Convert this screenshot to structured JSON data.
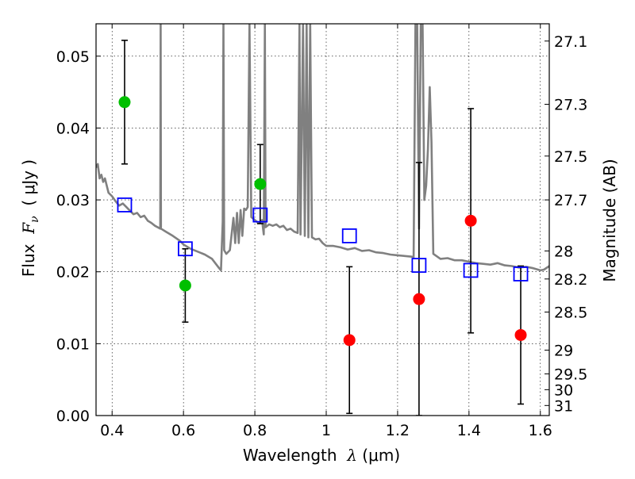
{
  "chart_data": {
    "type": "scatter",
    "xlabel_text": "Wavelength",
    "xlabel_symbol": "λ",
    "xlabel_unit": "(μm)",
    "ylabel_text": "Flux",
    "ylabel_symbol": "F",
    "ylabel_subscript": "ν",
    "ylabel_unit": "( μJy )",
    "ylabel_right": "Magnitude (AB)",
    "xlim": [
      0.355,
      1.625
    ],
    "ylim": [
      0.0,
      0.0545
    ],
    "grid": true,
    "x_ticks": [
      0.4,
      0.6,
      0.8,
      1.0,
      1.2,
      1.4,
      1.6
    ],
    "x_tick_labels": [
      "0.4",
      "0.6",
      "0.8",
      "1",
      "1.2",
      "1.4",
      "1.6"
    ],
    "y_ticks": [
      0.0,
      0.01,
      0.02,
      0.03,
      0.04,
      0.05
    ],
    "y_tick_labels": [
      "0.00",
      "0.01",
      "0.02",
      "0.03",
      "0.04",
      "0.05"
    ],
    "right_ticks": [
      {
        "label": "27.1",
        "flux": 0.0521
      },
      {
        "label": "27.3",
        "flux": 0.0433
      },
      {
        "label": "27.5",
        "flux": 0.0361
      },
      {
        "label": "27.7",
        "flux": 0.03
      },
      {
        "label": "28",
        "flux": 0.0229
      },
      {
        "label": "28.2",
        "flux": 0.019
      },
      {
        "label": "28.5",
        "flux": 0.0144
      },
      {
        "label": "29",
        "flux": 0.0091
      },
      {
        "label": "29.5",
        "flux": 0.0058
      },
      {
        "label": "30",
        "flux": 0.0036
      },
      {
        "label": "31",
        "flux": 0.0014
      }
    ],
    "series": [
      {
        "type": "line",
        "color": "#808080",
        "points": [
          [
            0.355,
            0.0345
          ],
          [
            0.36,
            0.035
          ],
          [
            0.365,
            0.033
          ],
          [
            0.37,
            0.0335
          ],
          [
            0.375,
            0.0325
          ],
          [
            0.38,
            0.033
          ],
          [
            0.39,
            0.031
          ],
          [
            0.4,
            0.0305
          ],
          [
            0.41,
            0.0298
          ],
          [
            0.42,
            0.0292
          ],
          [
            0.43,
            0.0295
          ],
          [
            0.44,
            0.029
          ],
          [
            0.45,
            0.0285
          ],
          [
            0.46,
            0.028
          ],
          [
            0.47,
            0.0282
          ],
          [
            0.48,
            0.0276
          ],
          [
            0.49,
            0.0278
          ],
          [
            0.5,
            0.0271
          ],
          [
            0.51,
            0.0268
          ],
          [
            0.52,
            0.0264
          ],
          [
            0.535,
            0.026
          ],
          [
            0.536,
            0.0545
          ],
          [
            0.537,
            0.026
          ],
          [
            0.55,
            0.0256
          ],
          [
            0.57,
            0.025
          ],
          [
            0.59,
            0.0243
          ],
          [
            0.6,
            0.0238
          ],
          [
            0.62,
            0.0232
          ],
          [
            0.64,
            0.0228
          ],
          [
            0.66,
            0.0224
          ],
          [
            0.68,
            0.0218
          ],
          [
            0.7,
            0.0205
          ],
          [
            0.705,
            0.0202
          ],
          [
            0.71,
            0.027
          ],
          [
            0.712,
            0.0545
          ],
          [
            0.714,
            0.023
          ],
          [
            0.72,
            0.0225
          ],
          [
            0.73,
            0.023
          ],
          [
            0.74,
            0.0275
          ],
          [
            0.745,
            0.024
          ],
          [
            0.75,
            0.0282
          ],
          [
            0.755,
            0.024
          ],
          [
            0.76,
            0.0286
          ],
          [
            0.765,
            0.025
          ],
          [
            0.77,
            0.0288
          ],
          [
            0.775,
            0.0286
          ],
          [
            0.78,
            0.029
          ],
          [
            0.785,
            0.0545
          ],
          [
            0.79,
            0.0276
          ],
          [
            0.8,
            0.0272
          ],
          [
            0.81,
            0.0268
          ],
          [
            0.82,
            0.0272
          ],
          [
            0.825,
            0.0252
          ],
          [
            0.828,
            0.0545
          ],
          [
            0.83,
            0.0262
          ],
          [
            0.84,
            0.0266
          ],
          [
            0.85,
            0.0264
          ],
          [
            0.86,
            0.0266
          ],
          [
            0.87,
            0.0262
          ],
          [
            0.88,
            0.0264
          ],
          [
            0.89,
            0.0258
          ],
          [
            0.9,
            0.026
          ],
          [
            0.91,
            0.0256
          ],
          [
            0.92,
            0.0254
          ],
          [
            0.925,
            0.0545
          ],
          [
            0.928,
            0.0252
          ],
          [
            0.935,
            0.0545
          ],
          [
            0.94,
            0.025
          ],
          [
            0.945,
            0.0545
          ],
          [
            0.95,
            0.0248
          ],
          [
            0.955,
            0.0545
          ],
          [
            0.96,
            0.0248
          ],
          [
            0.97,
            0.0245
          ],
          [
            0.98,
            0.0246
          ],
          [
            0.99,
            0.024
          ],
          [
            1.0,
            0.0236
          ],
          [
            1.02,
            0.0236
          ],
          [
            1.04,
            0.0234
          ],
          [
            1.06,
            0.0231
          ],
          [
            1.08,
            0.0233
          ],
          [
            1.1,
            0.0229
          ],
          [
            1.12,
            0.023
          ],
          [
            1.14,
            0.0227
          ],
          [
            1.16,
            0.0226
          ],
          [
            1.18,
            0.0224
          ],
          [
            1.2,
            0.0223
          ],
          [
            1.22,
            0.0222
          ],
          [
            1.24,
            0.0221
          ],
          [
            1.245,
            0.022
          ],
          [
            1.25,
            0.0545
          ],
          [
            1.255,
            0.0545
          ],
          [
            1.26,
            0.026
          ],
          [
            1.265,
            0.0545
          ],
          [
            1.27,
            0.0545
          ],
          [
            1.275,
            0.03
          ],
          [
            1.28,
            0.032
          ],
          [
            1.285,
            0.037
          ],
          [
            1.29,
            0.0457
          ],
          [
            1.295,
            0.038
          ],
          [
            1.3,
            0.0225
          ],
          [
            1.32,
            0.0218
          ],
          [
            1.34,
            0.0219
          ],
          [
            1.36,
            0.0216
          ],
          [
            1.38,
            0.0216
          ],
          [
            1.4,
            0.0214
          ],
          [
            1.42,
            0.0212
          ],
          [
            1.44,
            0.0211
          ],
          [
            1.46,
            0.021
          ],
          [
            1.48,
            0.0212
          ],
          [
            1.5,
            0.0209
          ],
          [
            1.52,
            0.0208
          ],
          [
            1.54,
            0.0206
          ],
          [
            1.56,
            0.0207
          ],
          [
            1.58,
            0.0205
          ],
          [
            1.6,
            0.0202
          ],
          [
            1.61,
            0.0203
          ],
          [
            1.625,
            0.0208
          ]
        ]
      },
      {
        "type": "scatter",
        "marker": "circle",
        "color": "#00bf00",
        "points": [
          {
            "x": 0.435,
            "y": 0.0436,
            "ylow": 0.035,
            "yhigh": 0.0522
          },
          {
            "x": 0.605,
            "y": 0.0181,
            "ylow": 0.013,
            "yhigh": 0.0232
          },
          {
            "x": 0.815,
            "y": 0.0322,
            "ylow": 0.0267,
            "yhigh": 0.0377
          }
        ]
      },
      {
        "type": "scatter",
        "marker": "circle",
        "color": "#ff0000",
        "points": [
          {
            "x": 1.065,
            "y": 0.0105,
            "ylow": 0.0003,
            "yhigh": 0.0207
          },
          {
            "x": 1.26,
            "y": 0.0162,
            "ylow": 0.0,
            "yhigh": 0.0352
          },
          {
            "x": 1.405,
            "y": 0.0271,
            "ylow": 0.0115,
            "yhigh": 0.0427
          },
          {
            "x": 1.545,
            "y": 0.0112,
            "ylow": 0.0016,
            "yhigh": 0.0208
          }
        ]
      },
      {
        "type": "scatter",
        "marker": "square-open",
        "color": "#0000ff",
        "points": [
          {
            "x": 0.435,
            "y": 0.0293
          },
          {
            "x": 0.605,
            "y": 0.0232
          },
          {
            "x": 0.815,
            "y": 0.0279
          },
          {
            "x": 1.065,
            "y": 0.025
          },
          {
            "x": 1.26,
            "y": 0.0209
          },
          {
            "x": 1.405,
            "y": 0.0202
          },
          {
            "x": 1.545,
            "y": 0.0197
          }
        ]
      }
    ]
  }
}
